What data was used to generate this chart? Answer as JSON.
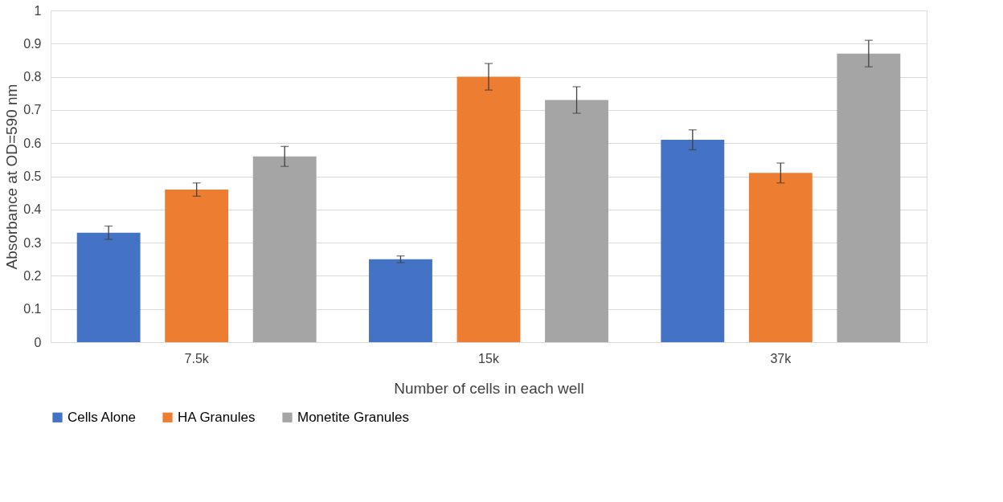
{
  "chart_data": {
    "type": "bar",
    "xlabel": "Number of cells in each well",
    "ylabel": "Absorbance at OD=590 nm",
    "categories": [
      "7.5k",
      "15k",
      "37k"
    ],
    "series": [
      {
        "name": "Cells Alone",
        "color": "#4472c4",
        "values": [
          0.33,
          0.25,
          0.61
        ],
        "errors": [
          0.02,
          0.01,
          0.03
        ]
      },
      {
        "name": "HA Granules",
        "color": "#ed7d31",
        "values": [
          0.46,
          0.8,
          0.51
        ],
        "errors": [
          0.02,
          0.04,
          0.03
        ]
      },
      {
        "name": "Monetite Granules",
        "color": "#a5a5a5",
        "values": [
          0.56,
          0.73,
          0.87
        ],
        "errors": [
          0.03,
          0.04,
          0.04
        ]
      }
    ],
    "ylim": [
      0,
      1
    ],
    "yticks": [
      0,
      0.1,
      0.2,
      0.3,
      0.4,
      0.5,
      0.6,
      0.7,
      0.8,
      0.9,
      1
    ],
    "grid": "y",
    "legend": "bottom"
  }
}
